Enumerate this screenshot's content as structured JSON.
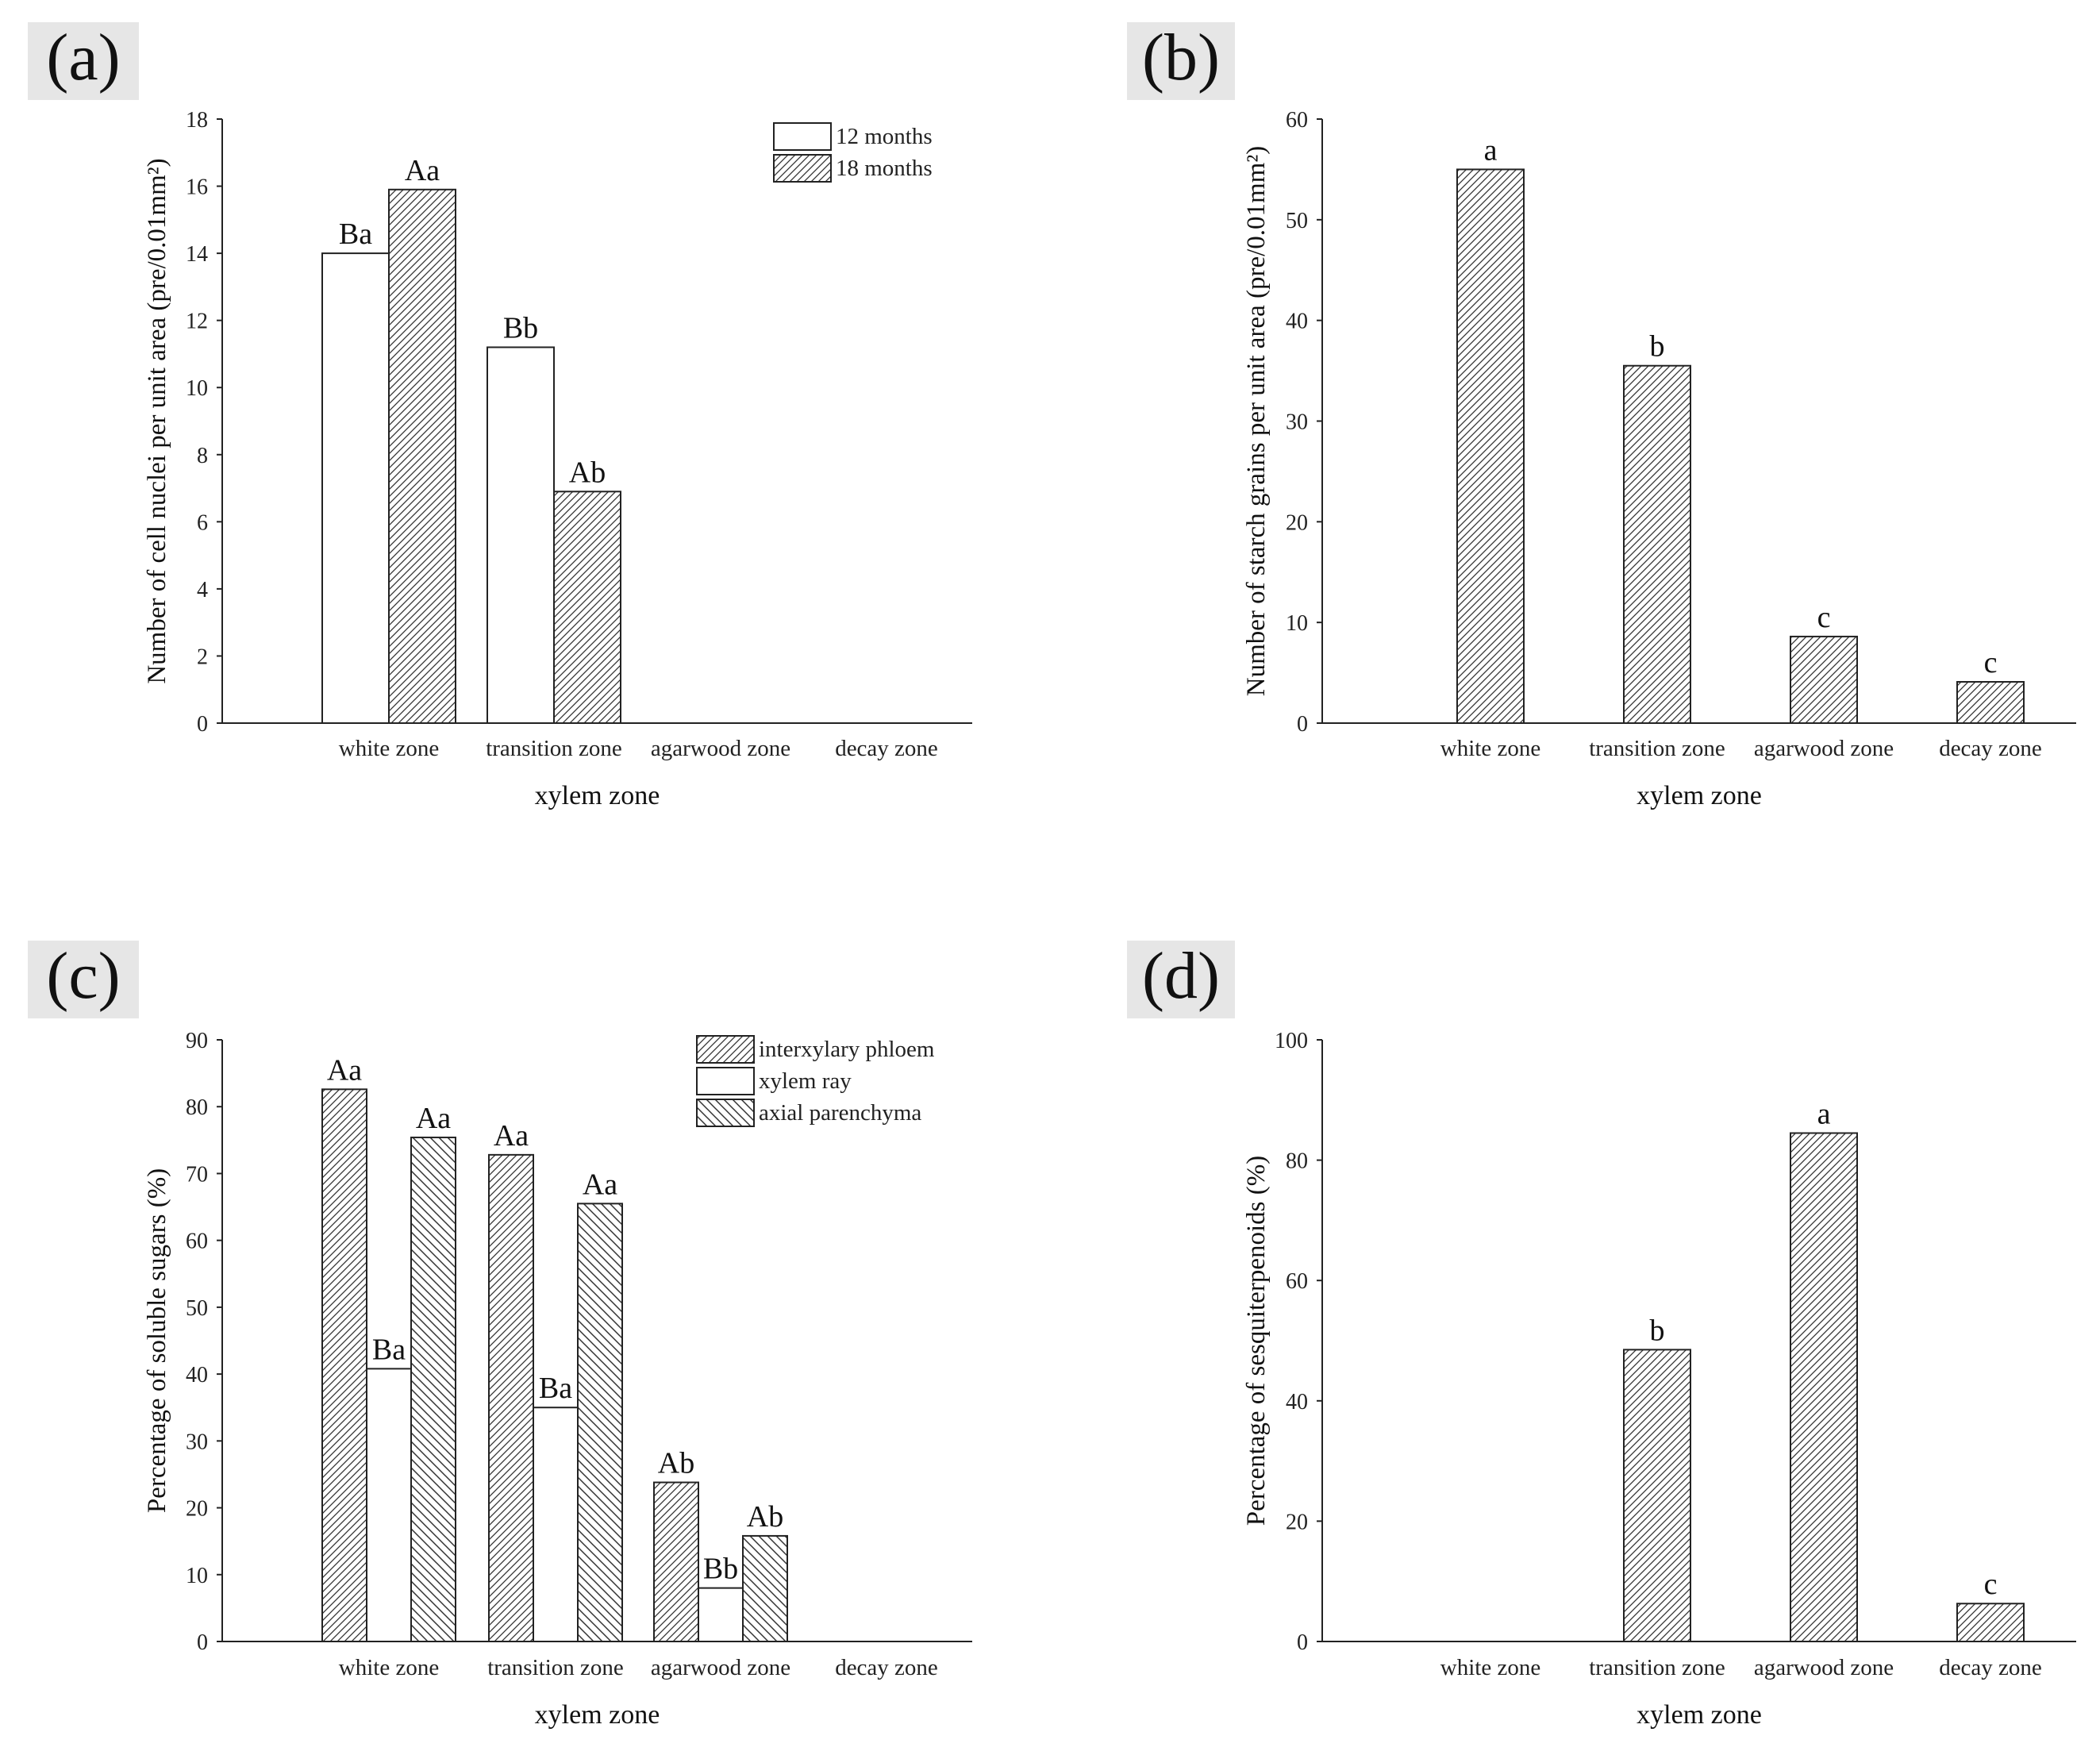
{
  "figure": {
    "xlabel": "xylem zone",
    "zones": [
      "white zone",
      "transition zone",
      "agarwood zone",
      "decay zone"
    ]
  },
  "chart_data": [
    {
      "panel": "(a)",
      "type": "bar",
      "ylabel": "Number of cell nuclei per unit area (pre/0.01mm²)",
      "xlabel": "xylem zone",
      "ylim": [
        0,
        18
      ],
      "yticks": [
        0,
        2,
        4,
        6,
        8,
        10,
        12,
        14,
        16,
        18
      ],
      "categories": [
        "white zone",
        "transition zone",
        "agarwood zone",
        "decay zone"
      ],
      "legend_position": "top-right",
      "series": [
        {
          "name": "12 months",
          "pattern": "none",
          "values": [
            14.0,
            11.2,
            null,
            null
          ],
          "labels": [
            "Ba",
            "Bb",
            "",
            ""
          ]
        },
        {
          "name": "18 months",
          "pattern": "hatch-forward",
          "values": [
            15.9,
            6.9,
            null,
            null
          ],
          "labels": [
            "Aa",
            "Ab",
            "",
            ""
          ]
        }
      ]
    },
    {
      "panel": "(b)",
      "type": "bar",
      "ylabel": "Number of starch grains per unit area (pre/0.01mm²)",
      "xlabel": "xylem zone",
      "ylim": [
        0,
        60
      ],
      "yticks": [
        0,
        10,
        20,
        30,
        40,
        50,
        60
      ],
      "categories": [
        "white zone",
        "transition zone",
        "agarwood zone",
        "decay zone"
      ],
      "series": [
        {
          "name": "starch grains",
          "pattern": "hatch-forward",
          "values": [
            55,
            35.5,
            8.6,
            4.1
          ],
          "labels": [
            "a",
            "b",
            "c",
            "c"
          ]
        }
      ]
    },
    {
      "panel": "(c)",
      "type": "bar",
      "ylabel": "Percentage of soluble sugars (%)",
      "xlabel": "xylem zone",
      "ylim": [
        0,
        90
      ],
      "yticks": [
        0,
        10,
        20,
        30,
        40,
        50,
        60,
        70,
        80,
        90
      ],
      "categories": [
        "white zone",
        "transition zone",
        "agarwood zone",
        "decay zone"
      ],
      "legend_position": "top-right",
      "series": [
        {
          "name": "interxylary phloem",
          "pattern": "hatch-forward",
          "values": [
            82.6,
            72.8,
            23.8,
            null
          ],
          "labels": [
            "Aa",
            "Aa",
            "Ab",
            ""
          ]
        },
        {
          "name": "xylem ray",
          "pattern": "none",
          "values": [
            40.8,
            35.0,
            8.0,
            null
          ],
          "labels": [
            "Ba",
            "Ba",
            "Bb",
            ""
          ]
        },
        {
          "name": "axial parenchyma",
          "pattern": "hatch-back",
          "values": [
            75.4,
            65.5,
            15.8,
            null
          ],
          "labels": [
            "Aa",
            "Aa",
            "Ab",
            ""
          ]
        }
      ]
    },
    {
      "panel": "(d)",
      "type": "bar",
      "ylabel": "Percentage of sesquiterpenoids (%)",
      "xlabel": "xylem zone",
      "ylim": [
        0,
        100
      ],
      "yticks": [
        0,
        20,
        40,
        60,
        80,
        100
      ],
      "categories": [
        "white zone",
        "transition zone",
        "agarwood zone",
        "decay zone"
      ],
      "series": [
        {
          "name": "sesquiterpenoids",
          "pattern": "hatch-forward",
          "values": [
            null,
            48.5,
            84.5,
            6.3
          ],
          "labels": [
            "",
            "b",
            "a",
            "c"
          ]
        }
      ]
    }
  ]
}
